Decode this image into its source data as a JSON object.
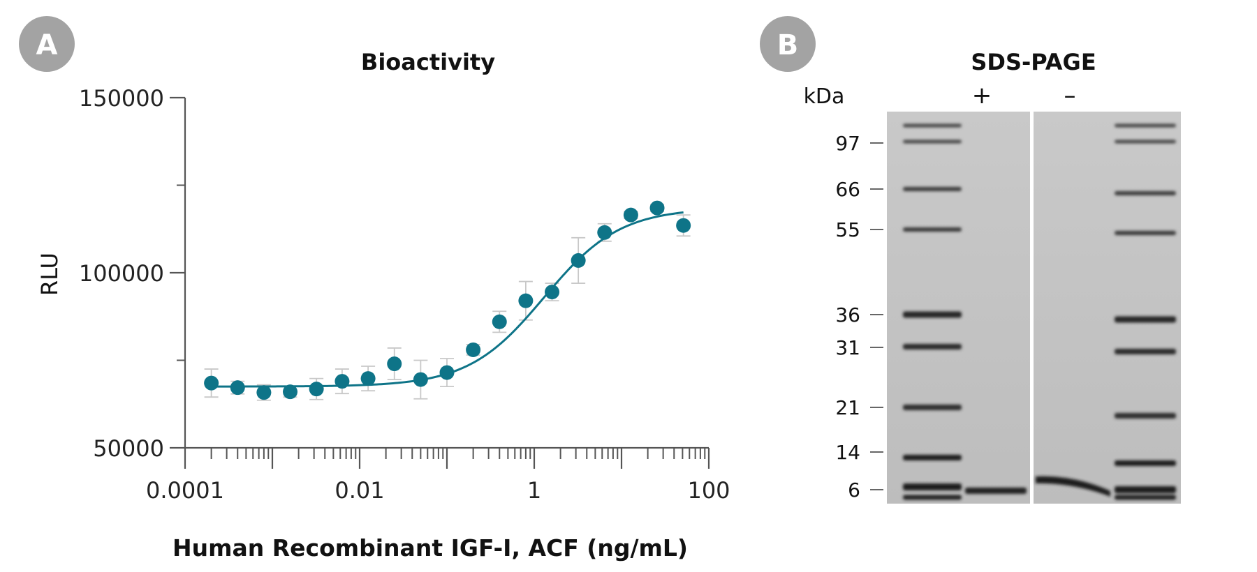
{
  "panels": {
    "a": {
      "badge": "A"
    },
    "b": {
      "badge": "B"
    }
  },
  "colors": {
    "series": "#0e7488",
    "axis": "#555555",
    "error_bar": "#c8c8c8",
    "badge": "#a3a3a3"
  },
  "chart_data": {
    "type": "scatter",
    "title": "Bioactivity",
    "xlabel": "Human Recombinant IGF-I, ACF (ng/mL)",
    "ylabel": "RLU",
    "x_scale": "log",
    "xlim": [
      0.0001,
      100
    ],
    "ylim": [
      50000,
      150000
    ],
    "x_ticks": [
      0.0001,
      0.01,
      1,
      100
    ],
    "x_tick_labels": [
      "0.0001",
      "0.01",
      "1",
      "100"
    ],
    "y_ticks": [
      50000,
      100000,
      150000
    ],
    "y_tick_labels": [
      "50000",
      "100000",
      "150000"
    ],
    "y_minor_ticks": [
      75000,
      125000
    ],
    "grid": false,
    "legend": "none",
    "fit": "four-parameter logistic",
    "points": [
      {
        "x": 0.0002,
        "y": 68500,
        "err": 4000
      },
      {
        "x": 0.0004,
        "y": 67200,
        "err": 1800
      },
      {
        "x": 0.0008,
        "y": 65800,
        "err": 2200
      },
      {
        "x": 0.0016,
        "y": 66000,
        "err": 1500
      },
      {
        "x": 0.0032,
        "y": 66800,
        "err": 3000
      },
      {
        "x": 0.0063,
        "y": 69000,
        "err": 3500
      },
      {
        "x": 0.0125,
        "y": 69800,
        "err": 3500
      },
      {
        "x": 0.025,
        "y": 74000,
        "err": 4500
      },
      {
        "x": 0.05,
        "y": 69500,
        "err": 5500
      },
      {
        "x": 0.1,
        "y": 71500,
        "err": 4000
      },
      {
        "x": 0.2,
        "y": 78000,
        "err": 1500
      },
      {
        "x": 0.4,
        "y": 86000,
        "err": 3000
      },
      {
        "x": 0.8,
        "y": 92000,
        "err": 5500
      },
      {
        "x": 1.6,
        "y": 94500,
        "err": 2500
      },
      {
        "x": 3.2,
        "y": 103500,
        "err": 6500
      },
      {
        "x": 6.4,
        "y": 111500,
        "err": 2500
      },
      {
        "x": 12.8,
        "y": 116500,
        "err": 1000
      },
      {
        "x": 25.6,
        "y": 118500,
        "err": 1000
      },
      {
        "x": 51.2,
        "y": 113500,
        "err": 3000
      }
    ],
    "fit_params": {
      "bottom": 67500,
      "top": 118500,
      "ec50": 1.3,
      "hill": 1.0
    }
  },
  "gel": {
    "title": "SDS-PAGE",
    "unit_label": "kDa",
    "lane_labels": [
      "+",
      "–"
    ],
    "markers": [
      "97",
      "66",
      "55",
      "36",
      "31",
      "21",
      "14",
      "6"
    ]
  }
}
